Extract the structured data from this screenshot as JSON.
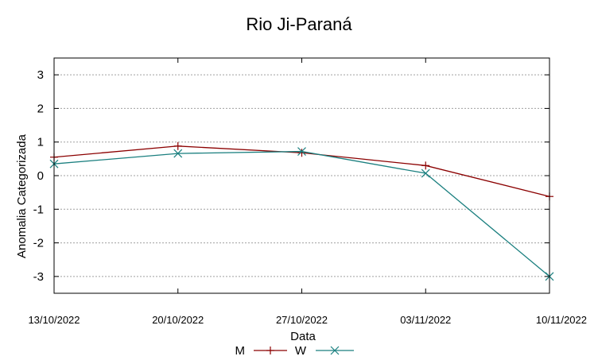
{
  "chart_data": {
    "type": "line",
    "title": "Rio Ji-Paraná",
    "xlabel": "Data",
    "ylabel": "Anomalia Categorizada",
    "categories": [
      "13/10/2022",
      "20/10/2022",
      "27/10/2022",
      "03/11/2022",
      "10/11/2022"
    ],
    "yticks": [
      "3",
      "2",
      "1",
      "0",
      "-1",
      "-2",
      "-3"
    ],
    "ylim": [
      -3.5,
      3.5
    ],
    "grid": true,
    "legend_position": "bottom-center",
    "series": [
      {
        "name": "M",
        "values": [
          0.55,
          0.88,
          0.68,
          0.3,
          -0.62
        ],
        "color": "#8b0000",
        "marker": "plus"
      },
      {
        "name": "W",
        "values": [
          0.35,
          0.66,
          0.72,
          0.07,
          -3.0
        ],
        "color": "#1a7f7f",
        "marker": "cross"
      }
    ]
  }
}
